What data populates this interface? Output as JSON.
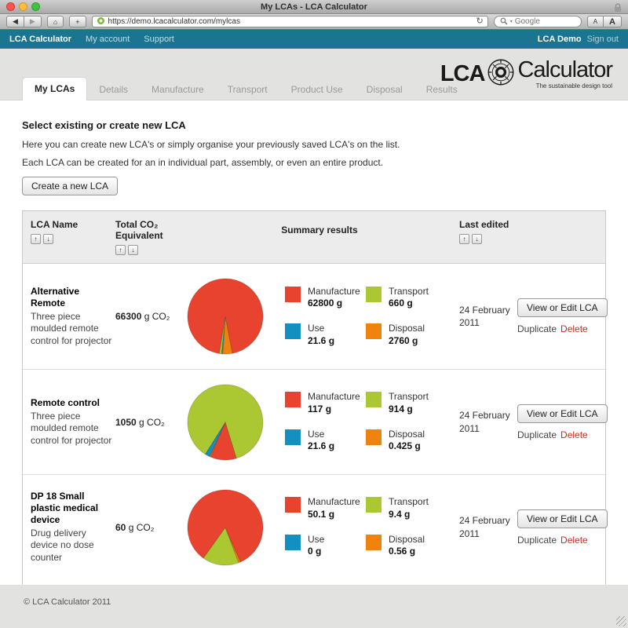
{
  "browser": {
    "title": "My LCAs - LCA Calculator",
    "url": "https://demo.lcacalculator.com/mylcas",
    "search_placeholder": "Google",
    "back_icon": "◀",
    "forward_icon": "▶",
    "home_icon": "⌂",
    "newtab_icon": "+",
    "refresh_icon": "↻",
    "font_smaller": "A",
    "font_bigger": "A"
  },
  "navbar": {
    "brand": "LCA Calculator",
    "my_account": "My account",
    "support": "Support",
    "user": "LCA Demo",
    "sign_out": "Sign out"
  },
  "logo": {
    "lca": "LCA",
    "calculator": "Calculator",
    "tagline": "The sustainable design tool"
  },
  "tabs": [
    {
      "label": "My LCAs",
      "active": true
    },
    {
      "label": "Details",
      "active": false
    },
    {
      "label": "Manufacture",
      "active": false
    },
    {
      "label": "Transport",
      "active": false
    },
    {
      "label": "Product Use",
      "active": false
    },
    {
      "label": "Disposal",
      "active": false
    },
    {
      "label": "Results",
      "active": false
    }
  ],
  "intro": {
    "heading": "Select existing or create new LCA",
    "line1": "Here you can create new LCA's or simply organise your previously saved LCA's on the list.",
    "line2": "Each LCA can be created for an in individual part, assembly, or even an entire product.",
    "create_button": "Create a new LCA"
  },
  "table": {
    "headers": {
      "name": "LCA Name",
      "total": "Total CO₂ Equivalent",
      "summary": "Summary results",
      "last_edited": "Last edited"
    },
    "sort_up": "↑",
    "sort_down": "↓",
    "legend_labels": {
      "manufacture": "Manufacture",
      "transport": "Transport",
      "use": "Use",
      "disposal": "Disposal"
    },
    "actions": {
      "view_edit": "View or Edit LCA",
      "duplicate": "Duplicate",
      "delete": "Delete"
    },
    "rows": [
      {
        "name": "Alternative Remote",
        "description": "Three piece moulded remote control for projector",
        "total_value": "66300",
        "total_unit": "g CO₂",
        "manufacture": "62800 g",
        "transport": "660 g",
        "use": "21.6 g",
        "disposal": "2760 g",
        "date": "24 February 2011"
      },
      {
        "name": "Remote control",
        "description": "Three piece moulded remote control for projector",
        "total_value": "1050",
        "total_unit": "g CO₂",
        "manufacture": "117 g",
        "transport": "914 g",
        "use": "21.6 g",
        "disposal": "0.425 g",
        "date": "24 February 2011"
      },
      {
        "name": "DP 18 Small plastic medical device",
        "description": "Drug delivery device no dose counter",
        "total_value": "60",
        "total_unit": "g CO₂",
        "manufacture": "50.1 g",
        "transport": "9.4 g",
        "use": "0 g",
        "disposal": "0.56 g",
        "date": "24 February 2011"
      }
    ]
  },
  "chart_data": [
    {
      "type": "pie",
      "title": "Alternative Remote summary results",
      "unit": "g CO2e",
      "start_angle": 169,
      "slices": [
        {
          "label": "Disposal",
          "value": 2760
        },
        {
          "label": "Use",
          "value": 21.6
        },
        {
          "label": "Transport",
          "value": 660
        },
        {
          "label": "Manufacture",
          "value": 62800
        }
      ]
    },
    {
      "type": "pie",
      "title": "Remote control summary results",
      "unit": "g CO2e",
      "start_angle": 203,
      "slices": [
        {
          "label": "Disposal",
          "value": 0.425
        },
        {
          "label": "Use",
          "value": 21.6
        },
        {
          "label": "Transport",
          "value": 914
        },
        {
          "label": "Manufacture",
          "value": 117
        }
      ]
    },
    {
      "type": "pie",
      "title": "DP 18 Small plastic medical device summary results",
      "unit": "g CO2e",
      "start_angle": 156,
      "slices": [
        {
          "label": "Disposal",
          "value": 0.56
        },
        {
          "label": "Use",
          "value": 0
        },
        {
          "label": "Transport",
          "value": 9.4
        },
        {
          "label": "Manufacture",
          "value": 50.1
        }
      ]
    }
  ],
  "footer": {
    "copyright": "© LCA Calculator 2011"
  },
  "colors": {
    "manufacture": "#e8432f",
    "transport": "#abc832",
    "use": "#1390c0",
    "disposal": "#f0830d",
    "navbar": "#1a7591",
    "delete_link": "#cc2b1f"
  }
}
